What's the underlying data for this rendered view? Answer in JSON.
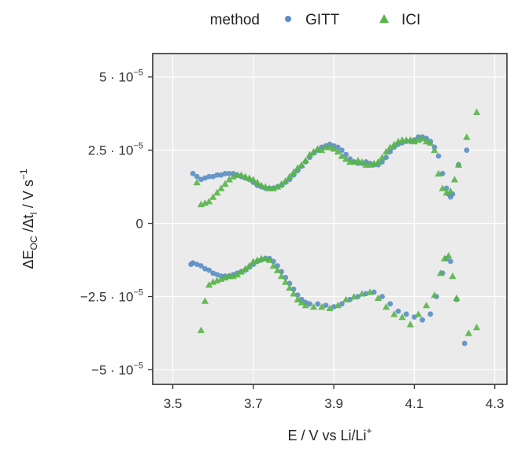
{
  "chart_data": {
    "type": "scatter",
    "xlabel": {
      "main": "E / V vs Li/Li",
      "sup": "+"
    },
    "ylabel": {
      "p1": "ΔE",
      "s1": "OC",
      "p2": " /Δt",
      "s2": "I",
      "p3": "  / V s",
      "sup": "−1"
    },
    "xlim": [
      3.45,
      4.33
    ],
    "ylim": [
      -5.5e-05,
      5.8e-05
    ],
    "x_ticks": [
      {
        "value": 3.5,
        "label": "3.5"
      },
      {
        "value": 3.7,
        "label": "3.7"
      },
      {
        "value": 3.9,
        "label": "3.9"
      },
      {
        "value": 4.1,
        "label": "4.1"
      },
      {
        "value": 4.3,
        "label": "4.3"
      }
    ],
    "y_ticks": [
      {
        "value": 5e-05,
        "label": "5 · 10",
        "exp": "−5"
      },
      {
        "value": 2.5e-05,
        "label": "2.5 · 10",
        "exp": "−5"
      },
      {
        "value": 0,
        "label": "0",
        "exp": ""
      },
      {
        "value": -2.5e-05,
        "label": "−2.5 · 10",
        "exp": "−5"
      },
      {
        "value": -5e-05,
        "label": "−5 · 10",
        "exp": "−5"
      }
    ],
    "grid": true,
    "legend": {
      "title": "method",
      "position": "top"
    },
    "colors": {
      "GITT": "#5b8ec4",
      "ICI": "#58b547",
      "panel": "#ebebeb",
      "grid": "#ffffff"
    },
    "series": [
      {
        "name": "GITT",
        "marker": "circle",
        "points": [
          [
            3.55,
            1.7e-05
          ],
          [
            3.56,
            1.6e-05
          ],
          [
            3.57,
            1.5e-05
          ],
          [
            3.58,
            1.55e-05
          ],
          [
            3.59,
            1.6e-05
          ],
          [
            3.6,
            1.6e-05
          ],
          [
            3.61,
            1.65e-05
          ],
          [
            3.62,
            1.65e-05
          ],
          [
            3.63,
            1.7e-05
          ],
          [
            3.64,
            1.7e-05
          ],
          [
            3.65,
            1.7e-05
          ],
          [
            3.66,
            1.65e-05
          ],
          [
            3.67,
            1.6e-05
          ],
          [
            3.68,
            1.55e-05
          ],
          [
            3.69,
            1.5e-05
          ],
          [
            3.7,
            1.4e-05
          ],
          [
            3.71,
            1.3e-05
          ],
          [
            3.72,
            1.25e-05
          ],
          [
            3.73,
            1.2e-05
          ],
          [
            3.74,
            1.2e-05
          ],
          [
            3.75,
            1.2e-05
          ],
          [
            3.76,
            1.25e-05
          ],
          [
            3.77,
            1.3e-05
          ],
          [
            3.78,
            1.4e-05
          ],
          [
            3.79,
            1.5e-05
          ],
          [
            3.8,
            1.65e-05
          ],
          [
            3.81,
            1.8e-05
          ],
          [
            3.82,
            1.95e-05
          ],
          [
            3.83,
            2.1e-05
          ],
          [
            3.84,
            2.25e-05
          ],
          [
            3.85,
            2.4e-05
          ],
          [
            3.86,
            2.5e-05
          ],
          [
            3.87,
            2.6e-05
          ],
          [
            3.88,
            2.65e-05
          ],
          [
            3.89,
            2.7e-05
          ],
          [
            3.9,
            2.65e-05
          ],
          [
            3.91,
            2.6e-05
          ],
          [
            3.92,
            2.5e-05
          ],
          [
            3.93,
            2.35e-05
          ],
          [
            3.94,
            2.2e-05
          ],
          [
            3.95,
            2.1e-05
          ],
          [
            3.96,
            2.05e-05
          ],
          [
            3.97,
            2.05e-05
          ],
          [
            3.98,
            2.1e-05
          ],
          [
            3.99,
            2.05e-05
          ],
          [
            4.0,
            2e-05
          ],
          [
            4.01,
            2e-05
          ],
          [
            4.02,
            2.1e-05
          ],
          [
            4.03,
            2.25e-05
          ],
          [
            4.04,
            2.45e-05
          ],
          [
            4.05,
            2.6e-05
          ],
          [
            4.06,
            2.7e-05
          ],
          [
            4.07,
            2.75e-05
          ],
          [
            4.08,
            2.8e-05
          ],
          [
            4.09,
            2.8e-05
          ],
          [
            4.1,
            2.85e-05
          ],
          [
            4.11,
            2.95e-05
          ],
          [
            4.12,
            2.95e-05
          ],
          [
            4.13,
            2.9e-05
          ],
          [
            4.14,
            2.8e-05
          ],
          [
            4.15,
            2.6e-05
          ],
          [
            4.16,
            2.3e-05
          ],
          [
            4.17,
            1.7e-05
          ],
          [
            4.18,
            1.2e-05
          ],
          [
            4.185,
            1e-05
          ],
          [
            4.19,
            9e-06
          ],
          [
            4.195,
            1e-05
          ],
          [
            4.21,
            2e-05
          ],
          [
            4.23,
            2.5e-05
          ],
          [
            3.545,
            -1.4e-05
          ],
          [
            3.55,
            -1.35e-05
          ],
          [
            3.56,
            -1.4e-05
          ],
          [
            3.57,
            -1.45e-05
          ],
          [
            3.58,
            -1.55e-05
          ],
          [
            3.59,
            -1.6e-05
          ],
          [
            3.6,
            -1.7e-05
          ],
          [
            3.61,
            -1.75e-05
          ],
          [
            3.62,
            -1.8e-05
          ],
          [
            3.63,
            -1.8e-05
          ],
          [
            3.64,
            -1.8e-05
          ],
          [
            3.65,
            -1.75e-05
          ],
          [
            3.66,
            -1.7e-05
          ],
          [
            3.67,
            -1.65e-05
          ],
          [
            3.68,
            -1.6e-05
          ],
          [
            3.69,
            -1.5e-05
          ],
          [
            3.7,
            -1.4e-05
          ],
          [
            3.71,
            -1.3e-05
          ],
          [
            3.72,
            -1.25e-05
          ],
          [
            3.73,
            -1.2e-05
          ],
          [
            3.74,
            -1.2e-05
          ],
          [
            3.75,
            -1.3e-05
          ],
          [
            3.76,
            -1.45e-05
          ],
          [
            3.77,
            -1.65e-05
          ],
          [
            3.78,
            -1.85e-05
          ],
          [
            3.79,
            -2.05e-05
          ],
          [
            3.8,
            -2.25e-05
          ],
          [
            3.81,
            -2.45e-05
          ],
          [
            3.82,
            -2.6e-05
          ],
          [
            3.83,
            -2.7e-05
          ],
          [
            3.84,
            -2.75e-05
          ],
          [
            3.86,
            -2.75e-05
          ],
          [
            3.88,
            -2.8e-05
          ],
          [
            3.9,
            -2.85e-05
          ],
          [
            3.92,
            -2.75e-05
          ],
          [
            3.94,
            -2.6e-05
          ],
          [
            3.96,
            -2.5e-05
          ],
          [
            3.98,
            -2.4e-05
          ],
          [
            4.0,
            -2.35e-05
          ],
          [
            4.02,
            -2.5e-05
          ],
          [
            4.04,
            -2.75e-05
          ],
          [
            4.06,
            -3e-05
          ],
          [
            4.08,
            -3.1e-05
          ],
          [
            4.1,
            -3.2e-05
          ],
          [
            4.12,
            -3.3e-05
          ],
          [
            4.14,
            -3.1e-05
          ],
          [
            4.155,
            -2.5e-05
          ],
          [
            4.17,
            -1.7e-05
          ],
          [
            4.18,
            -1.2e-05
          ],
          [
            4.19,
            -1.3e-05
          ],
          [
            4.205,
            -2.6e-05
          ],
          [
            4.225,
            -4.1e-05
          ]
        ]
      },
      {
        "name": "ICI",
        "marker": "triangle",
        "points": [
          [
            3.56,
            1.4e-05
          ],
          [
            3.57,
            6.5e-06
          ],
          [
            3.58,
            7e-06
          ],
          [
            3.59,
            7.5e-06
          ],
          [
            3.6,
            9e-06
          ],
          [
            3.61,
            1.05e-05
          ],
          [
            3.62,
            1.2e-05
          ],
          [
            3.63,
            1.35e-05
          ],
          [
            3.64,
            1.5e-05
          ],
          [
            3.65,
            1.6e-05
          ],
          [
            3.66,
            1.65e-05
          ],
          [
            3.67,
            1.65e-05
          ],
          [
            3.68,
            1.6e-05
          ],
          [
            3.69,
            1.55e-05
          ],
          [
            3.7,
            1.5e-05
          ],
          [
            3.71,
            1.4e-05
          ],
          [
            3.72,
            1.3e-05
          ],
          [
            3.73,
            1.25e-05
          ],
          [
            3.74,
            1.2e-05
          ],
          [
            3.75,
            1.2e-05
          ],
          [
            3.76,
            1.25e-05
          ],
          [
            3.77,
            1.35e-05
          ],
          [
            3.78,
            1.45e-05
          ],
          [
            3.79,
            1.6e-05
          ],
          [
            3.8,
            1.75e-05
          ],
          [
            3.81,
            1.9e-05
          ],
          [
            3.82,
            2e-05
          ],
          [
            3.83,
            2.15e-05
          ],
          [
            3.84,
            2.35e-05
          ],
          [
            3.85,
            2.45e-05
          ],
          [
            3.86,
            2.55e-05
          ],
          [
            3.87,
            2.5e-05
          ],
          [
            3.88,
            2.6e-05
          ],
          [
            3.89,
            2.6e-05
          ],
          [
            3.9,
            2.55e-05
          ],
          [
            3.91,
            2.45e-05
          ],
          [
            3.92,
            2.3e-05
          ],
          [
            3.93,
            2.2e-05
          ],
          [
            3.94,
            2.1e-05
          ],
          [
            3.95,
            2.1e-05
          ],
          [
            3.96,
            2.15e-05
          ],
          [
            3.97,
            2.1e-05
          ],
          [
            3.98,
            2e-05
          ],
          [
            3.99,
            2e-05
          ],
          [
            4.0,
            2.05e-05
          ],
          [
            4.01,
            2.1e-05
          ],
          [
            4.02,
            2.25e-05
          ],
          [
            4.03,
            2.45e-05
          ],
          [
            4.04,
            2.6e-05
          ],
          [
            4.05,
            2.7e-05
          ],
          [
            4.06,
            2.8e-05
          ],
          [
            4.07,
            2.85e-05
          ],
          [
            4.08,
            2.85e-05
          ],
          [
            4.09,
            2.85e-05
          ],
          [
            4.1,
            2.8e-05
          ],
          [
            4.11,
            2.85e-05
          ],
          [
            4.12,
            2.9e-05
          ],
          [
            4.13,
            2.8e-05
          ],
          [
            4.14,
            2.75e-05
          ],
          [
            4.15,
            2.5e-05
          ],
          [
            4.16,
            1.7e-05
          ],
          [
            4.17,
            1.2e-05
          ],
          [
            4.18,
            1.05e-05
          ],
          [
            4.19,
            1.1e-05
          ],
          [
            4.2,
            1.5e-05
          ],
          [
            4.21,
            2e-05
          ],
          [
            4.23,
            2.95e-05
          ],
          [
            4.255,
            3.8e-05
          ],
          [
            3.57,
            -3.65e-05
          ],
          [
            3.58,
            -2.65e-05
          ],
          [
            3.59,
            -2.1e-05
          ],
          [
            3.6,
            -2e-05
          ],
          [
            3.61,
            -1.95e-05
          ],
          [
            3.62,
            -1.9e-05
          ],
          [
            3.63,
            -1.85e-05
          ],
          [
            3.64,
            -1.8e-05
          ],
          [
            3.65,
            -1.8e-05
          ],
          [
            3.66,
            -1.75e-05
          ],
          [
            3.67,
            -1.65e-05
          ],
          [
            3.68,
            -1.55e-05
          ],
          [
            3.69,
            -1.45e-05
          ],
          [
            3.7,
            -1.3e-05
          ],
          [
            3.71,
            -1.25e-05
          ],
          [
            3.72,
            -1.2e-05
          ],
          [
            3.73,
            -1.2e-05
          ],
          [
            3.74,
            -1.25e-05
          ],
          [
            3.75,
            -1.45e-05
          ],
          [
            3.76,
            -1.6e-05
          ],
          [
            3.77,
            -1.8e-05
          ],
          [
            3.78,
            -2e-05
          ],
          [
            3.79,
            -2.2e-05
          ],
          [
            3.8,
            -2.4e-05
          ],
          [
            3.81,
            -2.6e-05
          ],
          [
            3.82,
            -2.7e-05
          ],
          [
            3.83,
            -2.8e-05
          ],
          [
            3.85,
            -2.85e-05
          ],
          [
            3.87,
            -2.85e-05
          ],
          [
            3.89,
            -2.9e-05
          ],
          [
            3.91,
            -2.8e-05
          ],
          [
            3.93,
            -2.6e-05
          ],
          [
            3.95,
            -2.5e-05
          ],
          [
            3.97,
            -2.4e-05
          ],
          [
            3.99,
            -2.35e-05
          ],
          [
            4.01,
            -2.55e-05
          ],
          [
            4.03,
            -2.85e-05
          ],
          [
            4.05,
            -3.1e-05
          ],
          [
            4.07,
            -3.2e-05
          ],
          [
            4.09,
            -3.45e-05
          ],
          [
            4.11,
            -3.1e-05
          ],
          [
            4.13,
            -2.8e-05
          ],
          [
            4.15,
            -2.45e-05
          ],
          [
            4.165,
            -1.7e-05
          ],
          [
            4.175,
            -1.2e-05
          ],
          [
            4.185,
            -1.1e-05
          ],
          [
            4.195,
            -1.8e-05
          ],
          [
            4.205,
            -2.55e-05
          ],
          [
            4.235,
            -3.75e-05
          ],
          [
            4.255,
            -3.55e-05
          ]
        ]
      }
    ]
  }
}
